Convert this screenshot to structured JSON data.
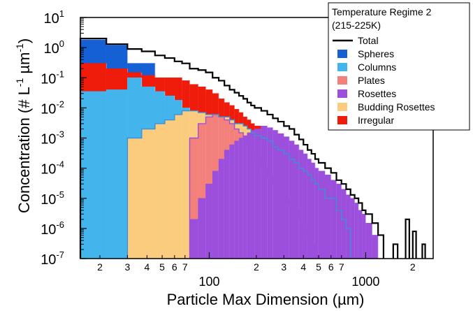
{
  "chart_data": {
    "type": "bar",
    "title": "",
    "xlabel": "Particle Max Dimension (µm)",
    "ylabel": "Concentration (# L-1 µm-1)",
    "ylabel_parts": {
      "prefix": "Concentration (# L",
      "l_exp": "-1",
      "mid": " µm",
      "um_exp": "-1",
      "suffix": ")"
    },
    "x_scale": "log",
    "y_scale": "log",
    "xlim": [
      15,
      2700
    ],
    "ylim": [
      1e-07,
      10
    ],
    "x_ticks": [
      {
        "value": 20,
        "label": "2"
      },
      {
        "value": 30,
        "label": "3"
      },
      {
        "value": 40,
        "label": "4"
      },
      {
        "value": 50,
        "label": "5"
      },
      {
        "value": 60,
        "label": "6"
      },
      {
        "value": 70,
        "label": "7"
      },
      {
        "value": 100,
        "label": "100"
      },
      {
        "value": 200,
        "label": "2"
      },
      {
        "value": 300,
        "label": "3"
      },
      {
        "value": 400,
        "label": "4"
      },
      {
        "value": 500,
        "label": "5"
      },
      {
        "value": 600,
        "label": "6"
      },
      {
        "value": 700,
        "label": "7"
      },
      {
        "value": 1000,
        "label": "1000"
      },
      {
        "value": 2000,
        "label": "2"
      }
    ],
    "y_ticks": [
      {
        "exp": -7,
        "base": "10",
        "sup": "-7"
      },
      {
        "exp": -6,
        "base": "10",
        "sup": "-6"
      },
      {
        "exp": -5,
        "base": "10",
        "sup": "-5"
      },
      {
        "exp": -4,
        "base": "10",
        "sup": "-4"
      },
      {
        "exp": -3,
        "base": "10",
        "sup": "-3"
      },
      {
        "exp": -2,
        "base": "10",
        "sup": "-2"
      },
      {
        "exp": -1,
        "base": "10",
        "sup": "-1"
      },
      {
        "exp": 0,
        "base": "10",
        "sup": "0"
      },
      {
        "exp": 1,
        "base": "10",
        "sup": "1"
      }
    ],
    "legend": {
      "title_lines": [
        "Temperature Regime 2",
        "(215-225K)"
      ],
      "placement": "top-right",
      "entries": [
        {
          "name": "Total",
          "kind": "line",
          "color": "#000000"
        },
        {
          "name": "Spheres",
          "kind": "box",
          "color": "#1560d4"
        },
        {
          "name": "Columns",
          "kind": "box",
          "color": "#43b5ec"
        },
        {
          "name": "Plates",
          "kind": "box",
          "color": "#f4807c"
        },
        {
          "name": "Rosettes",
          "kind": "box",
          "color": "#9c4fdc"
        },
        {
          "name": "Budding Rosettes",
          "kind": "box",
          "color": "#fbcc7e"
        },
        {
          "name": "Irregular",
          "kind": "box",
          "color": "#ef1c0c"
        }
      ]
    },
    "bin_edges": [
      15,
      22,
      30,
      37,
      45,
      52,
      60,
      67,
      75,
      85,
      95,
      105,
      115,
      125,
      135,
      145,
      155,
      165,
      175,
      185,
      195,
      215,
      235,
      255,
      275,
      300,
      325,
      350,
      375,
      400,
      425,
      450,
      475,
      500,
      550,
      600,
      650,
      700,
      750,
      800,
      850,
      900,
      950,
      1000,
      1100,
      1200,
      1300,
      1400,
      1500,
      1600,
      1700,
      1800,
      1900,
      2000,
      2100,
      2200,
      2300,
      2400,
      2500
    ],
    "series": [
      {
        "name": "Total",
        "values": [
          2,
          1.3,
          0.9,
          0.75,
          0.55,
          0.45,
          0.35,
          0.3,
          0.2,
          0.18,
          0.15,
          0.1,
          0.08,
          0.055,
          0.04,
          0.032,
          0.025,
          0.02,
          0.015,
          0.012,
          0.01,
          0.008,
          0.006,
          0.0045,
          0.0035,
          0.0025,
          0.002,
          0.0013,
          0.0009,
          0.0006,
          0.0004,
          0.0003,
          0.0002,
          0.00015,
          0.0001,
          7e-05,
          4e-05,
          3e-05,
          2e-05,
          1.3e-05,
          1e-05,
          7e-06,
          4e-06,
          3e-06,
          1.5e-06,
          6e-07,
          null,
          1e-07,
          3e-07,
          1e-07,
          null,
          2e-06,
          null,
          8e-07,
          null,
          null,
          3e-07,
          null
        ]
      },
      {
        "name": "Spheres",
        "values": [
          1.8,
          1.2,
          0.3,
          0.3,
          0.02,
          0.02,
          0.02,
          0.005,
          0.003,
          null,
          null,
          null,
          null,
          null,
          null,
          null,
          null,
          null,
          null,
          null,
          null,
          null,
          null,
          null,
          null,
          null,
          null,
          null,
          null,
          null,
          null,
          null,
          null,
          null,
          null,
          null,
          null,
          null,
          null,
          null,
          null,
          null,
          null,
          null,
          null,
          null,
          null,
          null,
          null,
          null,
          null,
          null,
          null,
          null,
          null,
          null,
          null,
          null
        ]
      },
      {
        "name": "Columns",
        "values": [
          0.035,
          0.04,
          0.1,
          0.05,
          0.035,
          0.025,
          0.018,
          0.01,
          0.008,
          0.006,
          0.005,
          0.004,
          0.0035,
          0.003,
          0.0025,
          0.002,
          0.0018,
          0.0015,
          0.0012,
          0.001,
          0.0008,
          0.0006,
          0.0004,
          0.0003,
          0.0002,
          0.00015,
          0.0001,
          6e-05,
          4e-05,
          3e-05,
          2e-05,
          1.5e-05,
          1e-05,
          1e-05,
          5e-06,
          3e-06,
          1e-06,
          null,
          null,
          null,
          null,
          null,
          null,
          null,
          null,
          null,
          null,
          null,
          null,
          null,
          null,
          null,
          null,
          null,
          null,
          null,
          null,
          null
        ]
      },
      {
        "name": "Plates",
        "values": [
          null,
          null,
          null,
          null,
          null,
          null,
          null,
          null,
          0.001,
          0.003,
          0.005,
          0.006,
          0.005,
          0.004,
          0.003,
          0.002,
          0.0015,
          0.001,
          0.0006,
          0.0003,
          0.0002,
          0.0001,
          5e-05,
          3e-05,
          2e-05,
          1e-05,
          6e-06,
          4e-06,
          2e-06,
          1e-06,
          6e-07,
          3e-07,
          1e-07,
          null,
          null,
          null,
          null,
          null,
          null,
          null,
          null,
          null,
          null,
          null,
          null,
          null,
          null,
          null,
          null,
          null,
          null,
          null,
          null,
          null,
          null,
          null,
          null,
          null
        ]
      },
      {
        "name": "Rosettes",
        "values": [
          null,
          null,
          null,
          null,
          null,
          null,
          null,
          1e-07,
          2e-06,
          1e-05,
          3e-05,
          8e-05,
          0.0002,
          0.0004,
          0.0006,
          0.0008,
          0.001,
          0.0012,
          0.0015,
          0.0018,
          0.002,
          0.0025,
          0.0022,
          0.0018,
          0.0014,
          0.0011,
          0.0008,
          0.0006,
          0.0004,
          0.0003,
          0.0002,
          0.00015,
          0.0001,
          8e-05,
          6e-05,
          4e-05,
          3e-05,
          2e-05,
          1.3e-05,
          1e-05,
          7e-06,
          4e-06,
          3e-06,
          1.5e-06,
          6e-07,
          null,
          null,
          null,
          null,
          null,
          null,
          null,
          null,
          null,
          null,
          null,
          null,
          null
        ]
      },
      {
        "name": "Budding Rosettes",
        "values": [
          null,
          null,
          0.001,
          0.002,
          0.003,
          0.004,
          0.006,
          0.008,
          0.008,
          0.007,
          0.006,
          0.006,
          0.005,
          0.005,
          0.004,
          0.003,
          0.003,
          0.0025,
          0.002,
          0.0015,
          0.0012,
          0.001,
          0.0008,
          0.0005,
          0.0004,
          0.0003,
          0.0002,
          0.00015,
          0.0001,
          8e-05,
          6e-05,
          4e-05,
          3e-05,
          2e-05,
          1e-05,
          1e-05,
          4e-06,
          2e-06,
          1e-06,
          null,
          null,
          null,
          null,
          null,
          null,
          null,
          null,
          null,
          null,
          null,
          null,
          null,
          null,
          null,
          null,
          null,
          null,
          null
        ]
      },
      {
        "name": "Irregular",
        "values": [
          0.3,
          0.2,
          0.15,
          0.12,
          0.1,
          0.1,
          0.1,
          0.08,
          0.06,
          0.05,
          0.04,
          0.03,
          0.02,
          0.015,
          0.012,
          0.009,
          0.007,
          0.005,
          0.004,
          0.003,
          0.0025,
          0.002,
          0.0015,
          0.001,
          0.0008,
          0.0005,
          0.0003,
          0.0002,
          0.00015,
          0.0001,
          6e-05,
          4e-05,
          3e-05,
          2e-05,
          1e-05,
          5e-06,
          2e-06,
          1e-06,
          null,
          null,
          null,
          null,
          null,
          null,
          null,
          null,
          null,
          null,
          null,
          null,
          null,
          null,
          null,
          null,
          null,
          null,
          null,
          null
        ]
      }
    ]
  }
}
